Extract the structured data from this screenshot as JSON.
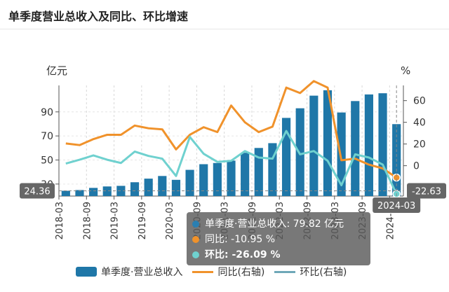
{
  "title": "单季度营业总收入及同比、环比增速",
  "chart_data": {
    "type": "bar",
    "title": "单季度营业总收入及同比、环比增速",
    "left_unit": "亿元",
    "right_unit": "%",
    "left_ticks": [
      "30",
      "50",
      "70",
      "90"
    ],
    "right_ticks": [
      "0",
      "20",
      "40",
      "60"
    ],
    "x_tick_labels": [
      "2018-03",
      "2018-09",
      "2019-03",
      "2019-09",
      "2020-03",
      "2020-09",
      "2021-03",
      "2021-09",
      "2022-03",
      "2022-09",
      "2023-03",
      "2023-09",
      "2024-03"
    ],
    "categories": [
      "2018-03",
      "2018-06",
      "2018-09",
      "2018-12",
      "2019-03",
      "2019-06",
      "2019-09",
      "2019-12",
      "2020-03",
      "2020-06",
      "2020-09",
      "2020-12",
      "2021-03",
      "2021-06",
      "2021-09",
      "2021-12",
      "2022-03",
      "2022-06",
      "2022-09",
      "2022-12",
      "2023-03",
      "2023-06",
      "2023-09",
      "2023-12",
      "2024-03"
    ],
    "series": [
      {
        "name": "单季度·营业总收入",
        "axis": "left",
        "color": "#1f77a8",
        "values": [
          24.4,
          25.0,
          26.8,
          28.0,
          28.5,
          31.5,
          34.5,
          36.7,
          33.5,
          41.8,
          46.5,
          47.5,
          49.5,
          56.0,
          60.0,
          64.0,
          85.0,
          93.0,
          103.5,
          108.0,
          89.5,
          99.0,
          104.5,
          105.5,
          79.82
        ]
      },
      {
        "name": "同比(右轴)",
        "axis": "right",
        "color": "#f0922b",
        "values": [
          20.5,
          19.0,
          24.5,
          28.5,
          28.5,
          37.0,
          34.5,
          33.5,
          15.0,
          28.5,
          35.5,
          31.0,
          55.5,
          40.0,
          31.0,
          36.0,
          72.0,
          67.0,
          78.0,
          72.0,
          5.0,
          6.5,
          1.0,
          -2.5,
          -10.95
        ]
      },
      {
        "name": "环比(右轴)",
        "axis": "right",
        "color": "#6fd1cf",
        "values": [
          2.0,
          5.5,
          9.5,
          5.5,
          2.5,
          13.0,
          9.0,
          6.5,
          -9.5,
          26.5,
          11.0,
          3.5,
          4.5,
          13.5,
          7.5,
          6.5,
          32.0,
          10.5,
          13.5,
          4.5,
          -18.0,
          10.5,
          7.5,
          1.0,
          -26.09
        ]
      }
    ],
    "ylim_left": [
      20,
      112
    ],
    "ylim_right": [
      -28,
      74
    ],
    "legend": "bottom",
    "grid": true,
    "axis_pointer": {
      "x_label": "2024-03",
      "left_value": "24.36",
      "right_value": "-22.63"
    },
    "tooltip": {
      "rows": [
        {
          "label": "单季度·营业总收入: 79.82  亿元",
          "color": "#2a7fb2"
        },
        {
          "label": "同比: -10.95  %",
          "color": "#f0922b"
        },
        {
          "label": "环比: -26.09  %",
          "color": "#6fd1cf"
        }
      ]
    }
  }
}
